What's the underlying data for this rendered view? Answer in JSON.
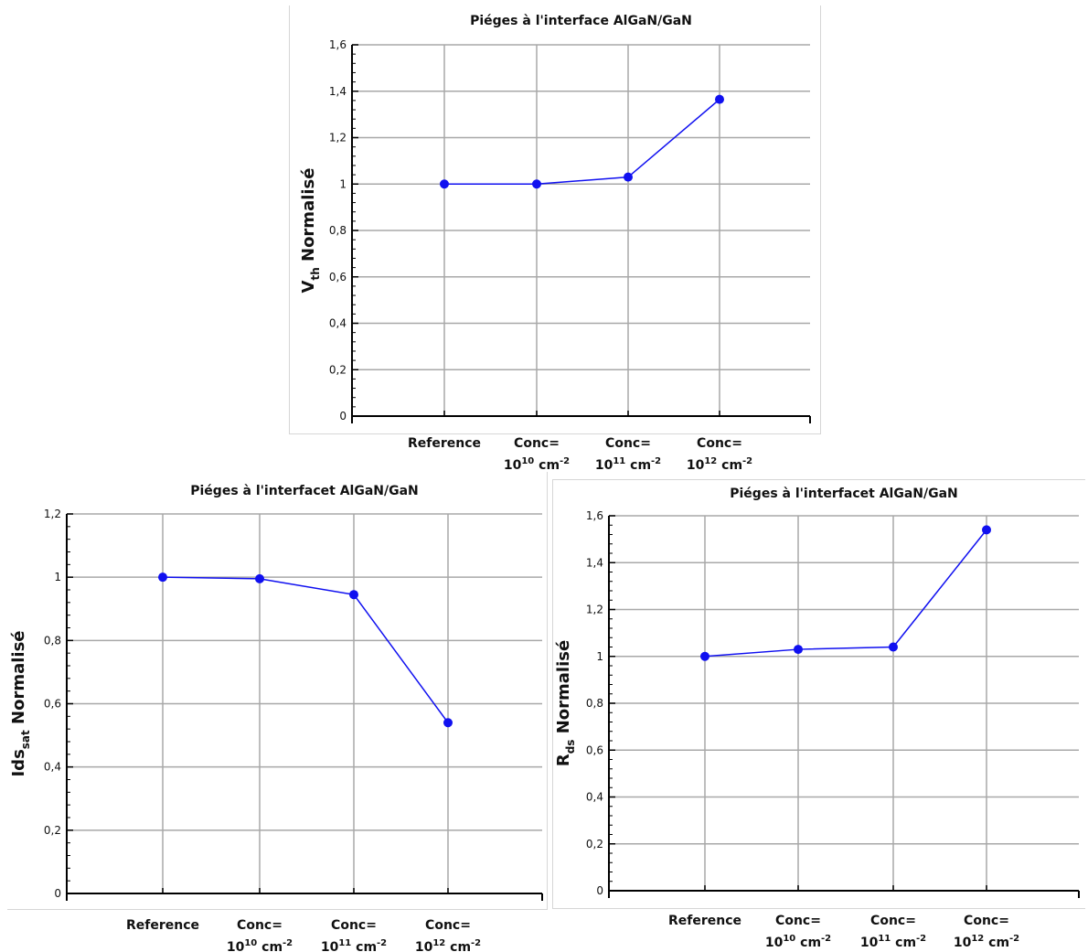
{
  "colors": {
    "series": "#1010f0",
    "grid": "#a8a8a8",
    "axis": "#000000"
  },
  "chart_data": [
    {
      "type": "line",
      "title": "Piéges à l'interface AlGaN/GaN",
      "ylabel": {
        "main": "V",
        "sub": "th",
        "rest": " Normalisé"
      },
      "categories": [
        {
          "line1": "Reference",
          "base": "",
          "exp": "",
          "unit": "",
          "uexp": ""
        },
        {
          "line1": "Conc=",
          "base": "10",
          "exp": "10",
          "unit": " cm",
          "uexp": "-2"
        },
        {
          "line1": "Conc=",
          "base": "10",
          "exp": "11",
          "unit": " cm",
          "uexp": "-2"
        },
        {
          "line1": "Conc=",
          "base": "10",
          "exp": "12",
          "unit": " cm",
          "uexp": "-2"
        }
      ],
      "series": [
        {
          "values": [
            1.0,
            1.0,
            1.03,
            1.365
          ]
        }
      ],
      "ylim": [
        0,
        1.6
      ],
      "yticks": [
        "0",
        "0,2",
        "0,4",
        "0,6",
        "0,8",
        "1",
        "1,2",
        "1,4",
        "1,6"
      ],
      "grid": true
    },
    {
      "type": "line",
      "title": "Piéges à l'interfacet AlGaN/GaN",
      "ylabel": {
        "main": "Ids",
        "sub": "sat",
        "rest": " Normalisé"
      },
      "categories": [
        {
          "line1": "Reference",
          "base": "",
          "exp": "",
          "unit": "",
          "uexp": ""
        },
        {
          "line1": "Conc=",
          "base": "10",
          "exp": "10",
          "unit": " cm",
          "uexp": "-2"
        },
        {
          "line1": "Conc=",
          "base": "10",
          "exp": "11",
          "unit": " cm",
          "uexp": "-2"
        },
        {
          "line1": "Conc=",
          "base": "10",
          "exp": "12",
          "unit": " cm",
          "uexp": "-2"
        }
      ],
      "series": [
        {
          "values": [
            1.0,
            0.995,
            0.945,
            0.54
          ]
        }
      ],
      "ylim": [
        0,
        1.2
      ],
      "yticks": [
        "0",
        "0,2",
        "0,4",
        "0,6",
        "0,8",
        "1",
        "1,2"
      ],
      "grid": true
    },
    {
      "type": "line",
      "title": "Piéges à l'interfacet AlGaN/GaN",
      "ylabel": {
        "main": "R",
        "sub": "ds",
        "rest": " Normalisé"
      },
      "categories": [
        {
          "line1": "Reference",
          "base": "",
          "exp": "",
          "unit": "",
          "uexp": ""
        },
        {
          "line1": "Conc=",
          "base": "10",
          "exp": "10",
          "unit": " cm",
          "uexp": "-2"
        },
        {
          "line1": "Conc=",
          "base": "10",
          "exp": "11",
          "unit": " cm",
          "uexp": "-2"
        },
        {
          "line1": "Conc=",
          "base": "10",
          "exp": "12",
          "unit": " cm",
          "uexp": "-2"
        }
      ],
      "series": [
        {
          "values": [
            1.0,
            1.03,
            1.04,
            1.54
          ]
        }
      ],
      "ylim": [
        0,
        1.6
      ],
      "yticks": [
        "0",
        "0,2",
        "0,4",
        "0,6",
        "0,8",
        "1",
        "1,2",
        "1,4",
        "1,6"
      ],
      "grid": true
    }
  ]
}
